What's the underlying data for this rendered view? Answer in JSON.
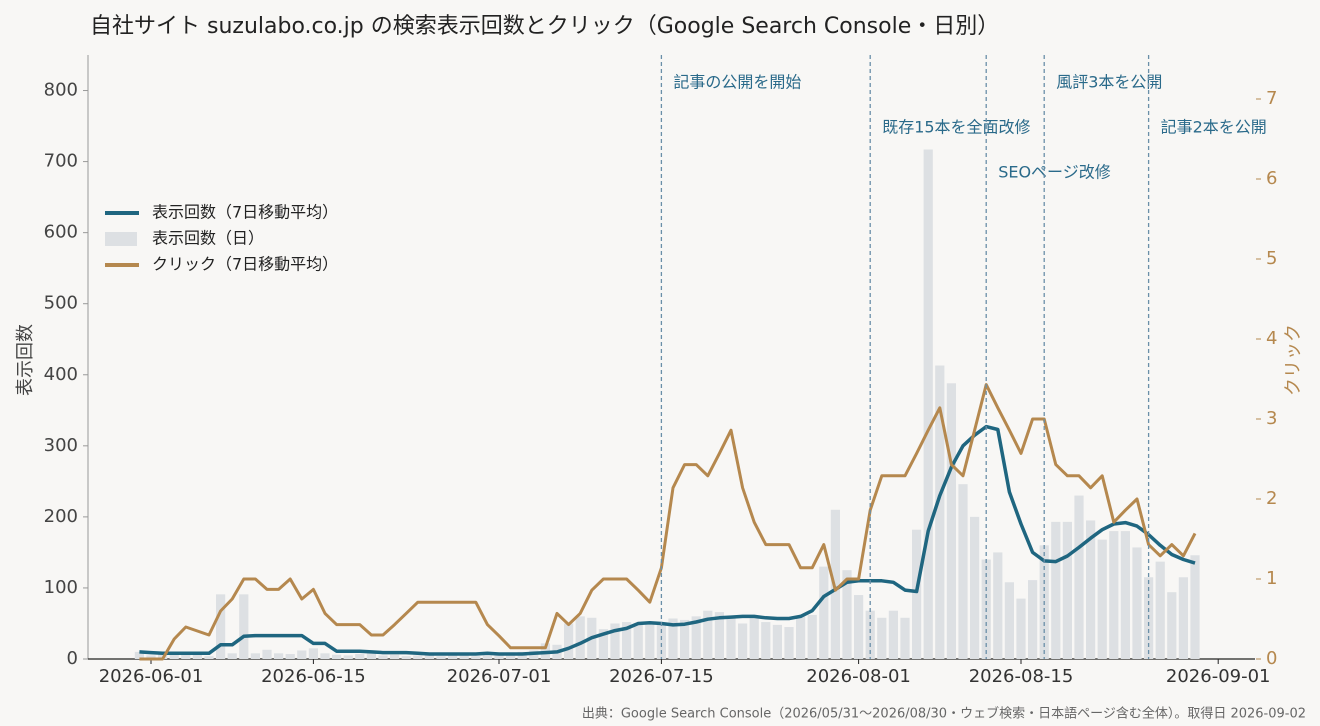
{
  "chart_data": {
    "type": "line",
    "title": "自社サイト suzulabo.co.jp の検索表示回数とクリック（Google Search Console・日別）",
    "source": "出典：Google Search Console（2026/05/31〜2026/08/30・ウェブ検索・日本語ページ含む全体）。取得日 2026-09-02",
    "y_label": "表示回数",
    "y2_label": "クリック",
    "legend": "upper left",
    "x": [
      "2026-05-31",
      "2026-06-01",
      "2026-06-02",
      "2026-06-03",
      "2026-06-04",
      "2026-06-05",
      "2026-06-06",
      "2026-06-07",
      "2026-06-08",
      "2026-06-09",
      "2026-06-10",
      "2026-06-11",
      "2026-06-12",
      "2026-06-13",
      "2026-06-14",
      "2026-06-15",
      "2026-06-16",
      "2026-06-17",
      "2026-06-18",
      "2026-06-19",
      "2026-06-20",
      "2026-06-21",
      "2026-06-22",
      "2026-06-23",
      "2026-06-24",
      "2026-06-25",
      "2026-06-26",
      "2026-06-27",
      "2026-06-28",
      "2026-06-29",
      "2026-06-30",
      "2026-07-01",
      "2026-07-02",
      "2026-07-03",
      "2026-07-04",
      "2026-07-05",
      "2026-07-06",
      "2026-07-07",
      "2026-07-08",
      "2026-07-09",
      "2026-07-10",
      "2026-07-11",
      "2026-07-12",
      "2026-07-13",
      "2026-07-14",
      "2026-07-15",
      "2026-07-16",
      "2026-07-17",
      "2026-07-18",
      "2026-07-19",
      "2026-07-20",
      "2026-07-21",
      "2026-07-22",
      "2026-07-23",
      "2026-07-24",
      "2026-07-25",
      "2026-07-26",
      "2026-07-27",
      "2026-07-28",
      "2026-07-29",
      "2026-07-30",
      "2026-07-31",
      "2026-08-01",
      "2026-08-02",
      "2026-08-03",
      "2026-08-04",
      "2026-08-05",
      "2026-08-06",
      "2026-08-07",
      "2026-08-08",
      "2026-08-09",
      "2026-08-10",
      "2026-08-11",
      "2026-08-12",
      "2026-08-13",
      "2026-08-14",
      "2026-08-15",
      "2026-08-16",
      "2026-08-17",
      "2026-08-18",
      "2026-08-19",
      "2026-08-20",
      "2026-08-21",
      "2026-08-22",
      "2026-08-23",
      "2026-08-24",
      "2026-08-25",
      "2026-08-26",
      "2026-08-27",
      "2026-08-28",
      "2026-08-29",
      "2026-08-30"
    ],
    "series": [
      {
        "name": "表示回数（7日移動平均）",
        "type": "line",
        "color": "#1f6680",
        "values": [
          10,
          9,
          8,
          8,
          8,
          8,
          8,
          20,
          20,
          32,
          33,
          33,
          33,
          33,
          33,
          22,
          22,
          11,
          11,
          11,
          10,
          9,
          9,
          9,
          8,
          7,
          7,
          7,
          7,
          7,
          8,
          7,
          7,
          7,
          8,
          9,
          10,
          15,
          22,
          30,
          35,
          40,
          43,
          50,
          51,
          50,
          48,
          49,
          52,
          56,
          58,
          59,
          60,
          60,
          58,
          57,
          57,
          60,
          68,
          88,
          98,
          108,
          110,
          110,
          110,
          108,
          97,
          95,
          180,
          230,
          270,
          300,
          315,
          327,
          323,
          235,
          190,
          150,
          138,
          137,
          145,
          157,
          170,
          182,
          190,
          192,
          187,
          175,
          160,
          147,
          140,
          135
        ]
      },
      {
        "name": "表示回数（日）",
        "type": "bar",
        "color": "#dde0e3",
        "values": [
          10,
          5,
          8,
          6,
          7,
          8,
          4,
          91,
          8,
          91,
          8,
          13,
          8,
          7,
          12,
          15,
          8,
          6,
          5,
          7,
          9,
          5,
          6,
          4,
          5,
          6,
          4,
          5,
          6,
          4,
          5,
          6,
          8,
          10,
          12,
          22,
          20,
          50,
          60,
          58,
          42,
          50,
          52,
          48,
          50,
          50,
          57,
          55,
          60,
          68,
          66,
          57,
          50,
          58,
          52,
          48,
          45,
          60,
          62,
          130,
          210,
          125,
          90,
          68,
          58,
          68,
          58,
          182,
          717,
          413,
          388,
          246,
          200,
          140,
          150,
          108,
          85,
          111,
          160,
          193,
          193,
          230,
          195,
          168,
          180,
          180,
          157,
          115,
          137,
          94,
          115,
          146
        ]
      },
      {
        "name": "クリック（7日移動平均）",
        "type": "line",
        "axis": "y2",
        "color": "#b5884e",
        "values": [
          0,
          0,
          0,
          0.25,
          0.4,
          0.35,
          0.3,
          0.6,
          0.75,
          1.0,
          1.0,
          0.87,
          0.87,
          1.0,
          0.75,
          0.87,
          0.57,
          0.43,
          0.43,
          0.43,
          0.3,
          0.3,
          0.43,
          0.57,
          0.71,
          0.71,
          0.71,
          0.71,
          0.71,
          0.71,
          0.43,
          0.29,
          0.14,
          0.14,
          0.14,
          0.14,
          0.57,
          0.43,
          0.57,
          0.86,
          1.0,
          1.0,
          1.0,
          0.86,
          0.71,
          1.14,
          2.14,
          2.43,
          2.43,
          2.29,
          2.57,
          2.86,
          2.14,
          1.71,
          1.43,
          1.43,
          1.43,
          1.14,
          1.14,
          1.43,
          0.86,
          1.0,
          1.0,
          1.86,
          2.29,
          2.29,
          2.29,
          2.57,
          2.86,
          3.14,
          2.43,
          2.29,
          2.86,
          3.43,
          3.14,
          2.86,
          2.57,
          3.0,
          3.0,
          2.43,
          2.29,
          2.29,
          2.14,
          2.29,
          1.71,
          1.86,
          2.0,
          1.43,
          1.29,
          1.43,
          1.29,
          1.57
        ]
      }
    ],
    "xlim": [
      "2026-05-27",
      "2026-09-04"
    ],
    "xticks": [
      "2026-06-01",
      "2026-06-15",
      "2026-07-01",
      "2026-07-15",
      "2026-08-01",
      "2026-08-15",
      "2026-09-01"
    ],
    "ylim": [
      0,
      850
    ],
    "yticks": [
      0,
      100,
      200,
      300,
      400,
      500,
      600,
      700,
      800
    ],
    "y2lim": [
      0,
      7.55
    ],
    "y2ticks": [
      0,
      1,
      2,
      3,
      4,
      5,
      6,
      7
    ],
    "annotations": [
      {
        "x": "2026-07-15",
        "text": "記事の公開を開始"
      },
      {
        "x": "2026-08-02",
        "text": "既存15本を全面改修"
      },
      {
        "x": "2026-08-12",
        "text": "SEOページ改修"
      },
      {
        "x": "2026-08-17",
        "text": "風評3本を公開"
      },
      {
        "x": "2026-08-26",
        "text": "記事2本を公開"
      }
    ]
  }
}
